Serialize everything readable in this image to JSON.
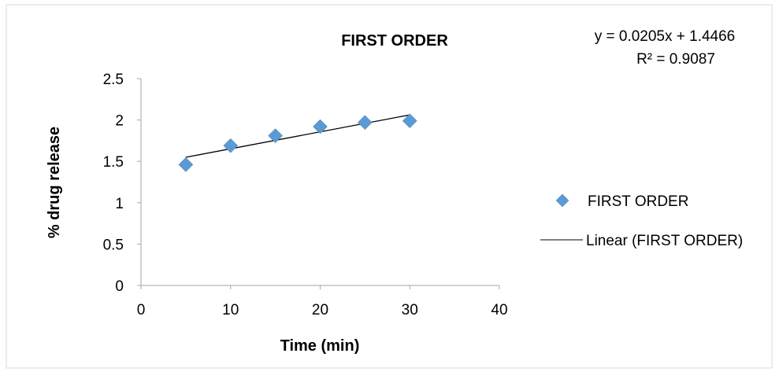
{
  "chart_data": {
    "type": "scatter",
    "title": "FIRST ORDER",
    "xlabel": "Time (min)",
    "ylabel": "% drug release",
    "xlim": [
      0,
      40
    ],
    "ylim": [
      0,
      2.5
    ],
    "x_ticks": [
      "0",
      "10",
      "20",
      "30",
      "40"
    ],
    "y_ticks": [
      "0",
      "0.5",
      "1",
      "1.5",
      "2",
      "2.5"
    ],
    "grid": false,
    "legend_position": "right",
    "series": [
      {
        "name": "FIRST ORDER",
        "marker": "diamond",
        "color": "#5b9bd5",
        "x": [
          5,
          10,
          15,
          20,
          25,
          30
        ],
        "y": [
          1.46,
          1.69,
          1.81,
          1.92,
          1.97,
          1.99
        ]
      }
    ],
    "trendline": {
      "name": "Linear (FIRST ORDER)",
      "type": "linear",
      "color": "#000000",
      "slope": 0.0205,
      "intercept": 1.4466,
      "x_range": [
        5,
        30
      ],
      "equation": "y = 0.0205x + 1.4466",
      "r_squared": "R² = 0.9087"
    }
  }
}
